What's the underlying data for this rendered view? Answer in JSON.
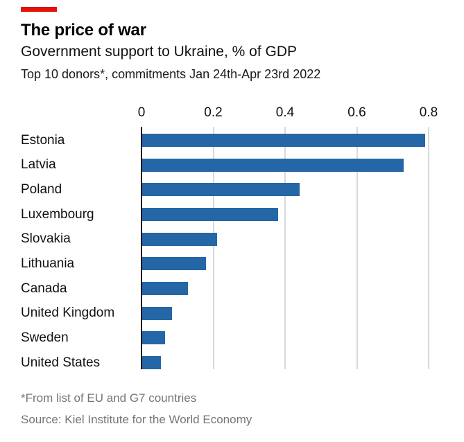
{
  "header": {
    "title": "The price of war",
    "subtitle": "Government support to Ukraine, % of GDP",
    "note": "Top 10 donors*, commitments Jan 24th-Apr 23rd 2022"
  },
  "chart_data": {
    "type": "bar",
    "orientation": "horizontal",
    "title": "The price of war",
    "subtitle": "Government support to Ukraine, % of GDP",
    "annotation": "Top 10 donors*, commitments Jan 24th-Apr 23rd 2022",
    "categories": [
      "Estonia",
      "Latvia",
      "Poland",
      "Luxembourg",
      "Slovakia",
      "Lithuania",
      "Canada",
      "United Kingdom",
      "Sweden",
      "United States"
    ],
    "values": [
      0.79,
      0.73,
      0.44,
      0.38,
      0.21,
      0.18,
      0.13,
      0.085,
      0.065,
      0.055
    ],
    "xlabel": "",
    "ylabel": "",
    "xlim": [
      0,
      0.8
    ],
    "xticks": [
      0,
      0.2,
      0.4,
      0.6,
      0.8
    ],
    "xtick_labels": [
      "0",
      "0.2",
      "0.4",
      "0.6",
      "0.8"
    ],
    "grid": "vertical-gridlines-on",
    "legend": "none",
    "bar_color": "#2566a6",
    "gridline_color": "#d9d9d9",
    "axis_color": "#0d0d0d"
  },
  "footer": {
    "footnote": "*From list of EU and G7 countries",
    "source": "Source: Kiel Institute for the World Economy"
  },
  "colors": {
    "accent_red": "#E3120B",
    "bar_blue": "#2566a6",
    "grid_gray": "#d9d9d9",
    "muted_text": "#757575",
    "background": "#ffffff"
  }
}
